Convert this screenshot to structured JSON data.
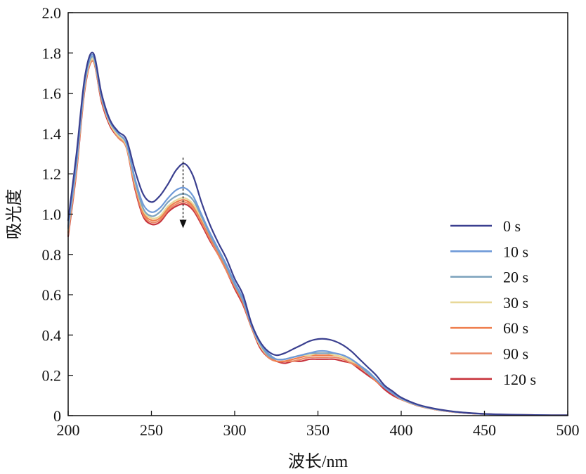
{
  "chart_data": {
    "type": "line",
    "xlabel": "波长/nm",
    "ylabel": "吸光度",
    "xlim": [
      200,
      500
    ],
    "ylim": [
      0,
      2.0
    ],
    "xticks": [
      "200",
      "250",
      "300",
      "350",
      "400",
      "450",
      "500"
    ],
    "yticks": [
      "0",
      "0.2",
      "0.4",
      "0.6",
      "0.8",
      "1.0",
      "1.2",
      "1.4",
      "1.6",
      "1.8",
      "2.0"
    ],
    "grid": false,
    "legend_position": "right",
    "annotation": {
      "type": "arrow",
      "x": 269,
      "from_y": 1.28,
      "to_y": 0.93
    },
    "x": [
      200,
      205,
      210,
      215,
      220,
      225,
      230,
      235,
      240,
      245,
      250,
      255,
      260,
      265,
      270,
      275,
      280,
      285,
      290,
      295,
      300,
      305,
      310,
      315,
      320,
      325,
      330,
      335,
      340,
      345,
      350,
      355,
      360,
      365,
      370,
      375,
      380,
      385,
      390,
      395,
      400,
      410,
      420,
      430,
      440,
      450,
      460,
      470,
      480,
      490,
      500
    ],
    "series": [
      {
        "name": "0 s",
        "color": "#3a3f8f",
        "values": [
          0.97,
          1.3,
          1.68,
          1.8,
          1.6,
          1.47,
          1.41,
          1.37,
          1.22,
          1.1,
          1.06,
          1.09,
          1.15,
          1.22,
          1.25,
          1.19,
          1.06,
          0.95,
          0.86,
          0.78,
          0.68,
          0.6,
          0.46,
          0.37,
          0.32,
          0.3,
          0.31,
          0.33,
          0.35,
          0.37,
          0.38,
          0.38,
          0.37,
          0.35,
          0.32,
          0.28,
          0.24,
          0.2,
          0.15,
          0.12,
          0.09,
          0.055,
          0.035,
          0.022,
          0.014,
          0.009,
          0.006,
          0.004,
          0.003,
          0.002,
          0.002
        ]
      },
      {
        "name": "10 s",
        "color": "#6f9ad8",
        "values": [
          0.94,
          1.26,
          1.66,
          1.79,
          1.59,
          1.46,
          1.4,
          1.35,
          1.18,
          1.05,
          1.01,
          1.03,
          1.08,
          1.12,
          1.13,
          1.09,
          1.0,
          0.91,
          0.83,
          0.75,
          0.66,
          0.58,
          0.45,
          0.36,
          0.31,
          0.28,
          0.28,
          0.29,
          0.3,
          0.31,
          0.32,
          0.32,
          0.31,
          0.3,
          0.28,
          0.25,
          0.22,
          0.18,
          0.14,
          0.11,
          0.085,
          0.052,
          0.033,
          0.021,
          0.013,
          0.008,
          0.005,
          0.004,
          0.003,
          0.002,
          0.002
        ]
      },
      {
        "name": "20 s",
        "color": "#7fa4be",
        "values": [
          0.93,
          1.25,
          1.65,
          1.78,
          1.58,
          1.46,
          1.4,
          1.35,
          1.17,
          1.03,
          0.99,
          1.01,
          1.06,
          1.09,
          1.1,
          1.07,
          0.99,
          0.9,
          0.82,
          0.74,
          0.65,
          0.57,
          0.45,
          0.36,
          0.3,
          0.28,
          0.28,
          0.29,
          0.3,
          0.31,
          0.31,
          0.31,
          0.31,
          0.3,
          0.28,
          0.25,
          0.21,
          0.18,
          0.14,
          0.11,
          0.084,
          0.052,
          0.033,
          0.021,
          0.013,
          0.008,
          0.005,
          0.004,
          0.003,
          0.002,
          0.002
        ]
      },
      {
        "name": "30 s",
        "color": "#e8d898",
        "values": [
          0.92,
          1.24,
          1.64,
          1.77,
          1.58,
          1.45,
          1.39,
          1.34,
          1.16,
          1.02,
          0.98,
          0.99,
          1.04,
          1.07,
          1.08,
          1.05,
          0.98,
          0.9,
          0.82,
          0.74,
          0.65,
          0.57,
          0.45,
          0.35,
          0.3,
          0.28,
          0.28,
          0.29,
          0.3,
          0.3,
          0.31,
          0.31,
          0.3,
          0.29,
          0.27,
          0.25,
          0.21,
          0.18,
          0.14,
          0.11,
          0.083,
          0.051,
          0.032,
          0.02,
          0.013,
          0.008,
          0.005,
          0.004,
          0.003,
          0.002,
          0.002
        ]
      },
      {
        "name": "60 s",
        "color": "#ef7f4f",
        "values": [
          0.91,
          1.23,
          1.64,
          1.77,
          1.57,
          1.45,
          1.39,
          1.34,
          1.15,
          1.01,
          0.97,
          0.98,
          1.03,
          1.06,
          1.07,
          1.04,
          0.97,
          0.89,
          0.81,
          0.73,
          0.64,
          0.56,
          0.44,
          0.35,
          0.3,
          0.27,
          0.27,
          0.28,
          0.29,
          0.3,
          0.3,
          0.3,
          0.3,
          0.29,
          0.27,
          0.24,
          0.21,
          0.17,
          0.14,
          0.11,
          0.082,
          0.05,
          0.032,
          0.02,
          0.012,
          0.008,
          0.005,
          0.004,
          0.003,
          0.002,
          0.002
        ]
      },
      {
        "name": "90 s",
        "color": "#ea8a66",
        "values": [
          0.9,
          1.22,
          1.63,
          1.76,
          1.57,
          1.45,
          1.38,
          1.33,
          1.14,
          1.0,
          0.96,
          0.97,
          1.02,
          1.05,
          1.06,
          1.03,
          0.96,
          0.88,
          0.8,
          0.72,
          0.64,
          0.56,
          0.44,
          0.35,
          0.29,
          0.27,
          0.27,
          0.27,
          0.28,
          0.29,
          0.29,
          0.29,
          0.29,
          0.28,
          0.26,
          0.24,
          0.21,
          0.17,
          0.14,
          0.11,
          0.081,
          0.05,
          0.031,
          0.02,
          0.012,
          0.008,
          0.005,
          0.004,
          0.003,
          0.002,
          0.002
        ]
      },
      {
        "name": "120 s",
        "color": "#c8343d",
        "values": [
          0.89,
          1.21,
          1.62,
          1.76,
          1.56,
          1.44,
          1.38,
          1.33,
          1.13,
          0.99,
          0.95,
          0.96,
          1.01,
          1.04,
          1.05,
          1.02,
          0.95,
          0.87,
          0.8,
          0.72,
          0.63,
          0.55,
          0.44,
          0.34,
          0.29,
          0.27,
          0.26,
          0.27,
          0.27,
          0.28,
          0.28,
          0.28,
          0.28,
          0.27,
          0.26,
          0.23,
          0.2,
          0.17,
          0.13,
          0.1,
          0.08,
          0.049,
          0.031,
          0.019,
          0.012,
          0.008,
          0.005,
          0.004,
          0.003,
          0.002,
          0.002
        ]
      }
    ]
  }
}
